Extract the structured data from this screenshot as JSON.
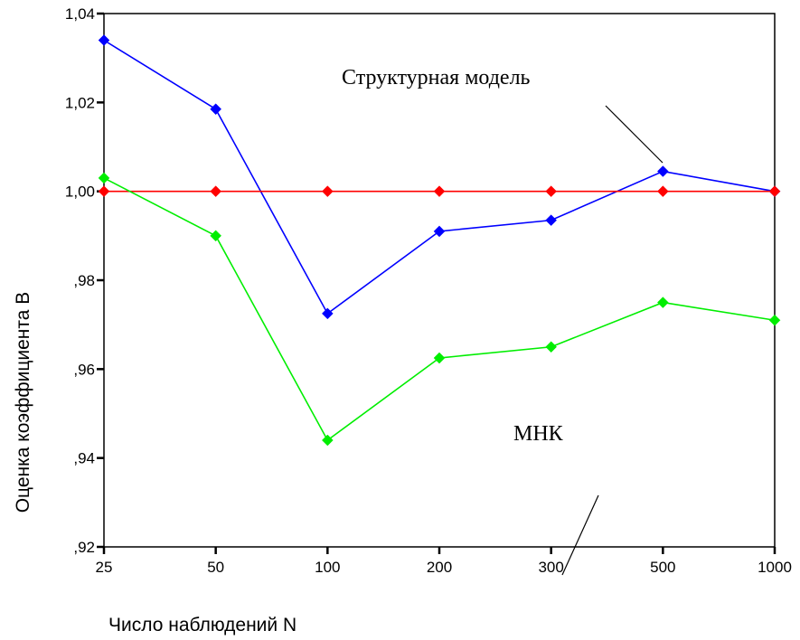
{
  "chart_data": {
    "type": "line",
    "xlabel": "Число наблюдений N",
    "ylabel": "Оценка коэффициента В",
    "categories": [
      "25",
      "50",
      "100",
      "200",
      "300",
      "500",
      "1000"
    ],
    "ylim": [
      0.92,
      1.04
    ],
    "yticks": [
      {
        "value": 0.92,
        "label": ",92"
      },
      {
        "value": 0.94,
        "label": ",94"
      },
      {
        "value": 0.96,
        "label": ",96"
      },
      {
        "value": 0.98,
        "label": ",98"
      },
      {
        "value": 1.0,
        "label": "1,00"
      },
      {
        "value": 1.02,
        "label": "1,02"
      },
      {
        "value": 1.04,
        "label": "1,04"
      }
    ],
    "grid": false,
    "series": [
      {
        "color": "#0000ff",
        "values": [
          1.034,
          1.0185,
          0.9725,
          0.991,
          0.9935,
          1.0045,
          1.0
        ]
      },
      {
        "color": "#ff0000",
        "values": [
          1.0,
          1.0,
          1.0,
          1.0,
          1.0,
          1.0,
          1.0
        ]
      },
      {
        "color": "#00ee00",
        "values": [
          1.003,
          0.99,
          0.944,
          0.9625,
          0.965,
          0.975,
          0.971
        ]
      }
    ],
    "annotations": [
      {
        "text": "Структурная модель"
      },
      {
        "text": "МНК"
      }
    ]
  }
}
